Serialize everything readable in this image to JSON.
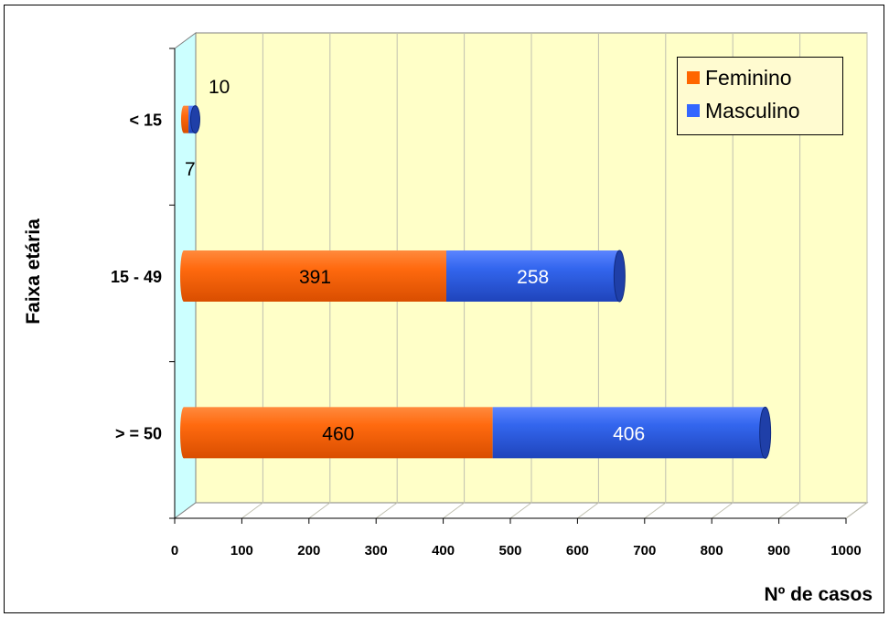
{
  "chart_data": {
    "type": "bar",
    "orientation": "horizontal",
    "stacked": true,
    "categories": [
      "< 15",
      "15 - 49",
      "> = 50"
    ],
    "series": [
      {
        "name": "Feminino",
        "values": [
          7,
          391,
          460
        ],
        "color": "#ff6600"
      },
      {
        "name": "Masculino",
        "values": [
          10,
          258,
          406
        ],
        "color": "#3366ff"
      }
    ],
    "data_labels": {
      "< 15": [
        "7",
        "10"
      ],
      "15 - 49": [
        "391",
        "258"
      ],
      "> = 50": [
        "460",
        "406"
      ]
    },
    "xlabel": "Nº de casos",
    "ylabel": "Faixa etária",
    "xlim": [
      0,
      1000
    ],
    "xticks": [
      "0",
      "100",
      "200",
      "300",
      "400",
      "500",
      "600",
      "700",
      "800",
      "900",
      "1000"
    ],
    "grid": true,
    "legend_position": "top-right"
  }
}
